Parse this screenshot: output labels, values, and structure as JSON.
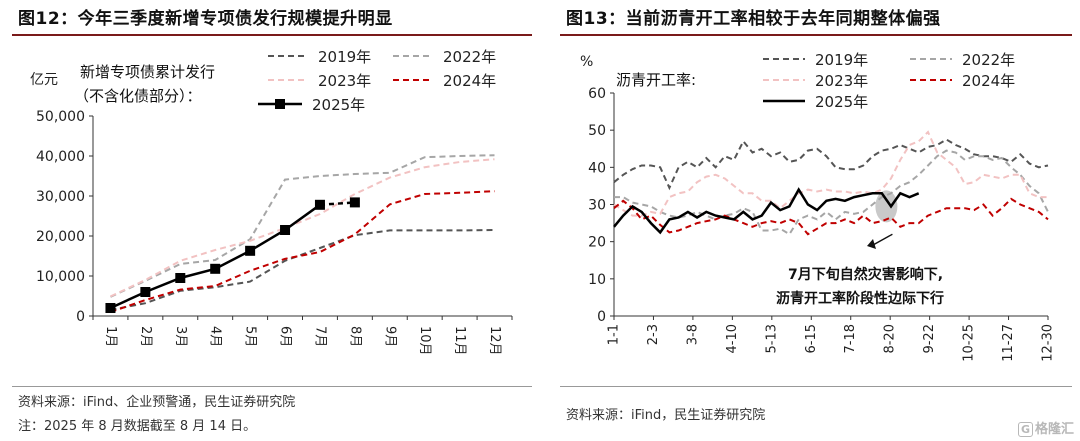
{
  "left": {
    "title": "图12：今年三季度新增专项债发行规模提升明显",
    "source": "资料来源：iFind、企业预警通，民生证券研究院",
    "note": "注：2025 年 8 月数据截至 8 月 14 日。"
  },
  "right": {
    "title": "图13：当前沥青开工率相较于去年同期整体偏强",
    "source": "资料来源：iFind，民生证券研究院"
  },
  "watermark": {
    "badge": "G",
    "text": "格隆汇"
  },
  "colors": {
    "y2019": "#555555",
    "y2022": "#a6a6a6",
    "y2023": "#f2c2c2",
    "y2024": "#c00000",
    "y2025": "#000000",
    "shade": "#bfbfbf",
    "rule": "#7a1a1a"
  },
  "chart_data": [
    {
      "type": "line",
      "ylabel": "亿元",
      "annotation": "新增专项债累计发行（不含化债部分）：",
      "ylim": [
        0,
        50000
      ],
      "yticks": [
        "0",
        "10,000",
        "20,000",
        "30,000",
        "40,000",
        "50,000"
      ],
      "categories": [
        "1月",
        "2月",
        "3月",
        "4月",
        "5月",
        "6月",
        "7月",
        "8月",
        "9月",
        "10月",
        "11月",
        "12月"
      ],
      "series": [
        {
          "name": "2019年",
          "values": [
            1500,
            3200,
            6300,
            7200,
            8600,
            13800,
            17000,
            20200,
            21400,
            21400,
            21400,
            21500
          ]
        },
        {
          "name": "2022年",
          "values": [
            4800,
            8800,
            13000,
            14000,
            19200,
            34100,
            35000,
            35500,
            35800,
            39700,
            40000,
            40200
          ]
        },
        {
          "name": "2023年",
          "values": [
            4900,
            9000,
            13800,
            16500,
            18800,
            22000,
            25500,
            30500,
            34600,
            37200,
            38500,
            39200
          ]
        },
        {
          "name": "2024年",
          "values": [
            1000,
            4000,
            6600,
            7500,
            11300,
            14300,
            16000,
            20400,
            27900,
            30500,
            30800,
            31200
          ]
        },
        {
          "name": "2025年",
          "values": [
            2000,
            6000,
            9500,
            11800,
            16300,
            21500,
            27800,
            28400,
            null,
            null,
            null,
            null
          ]
        }
      ]
    },
    {
      "type": "line",
      "ylabel": "%",
      "annotation": "沥青开工率:",
      "ylim": [
        0,
        60
      ],
      "yticks": [
        "0",
        "10",
        "20",
        "30",
        "40",
        "50",
        "60"
      ],
      "xticks": [
        "1-1",
        "2-3",
        "3-8",
        "4-10",
        "5-13",
        "6-15",
        "7-18",
        "8-20",
        "9-22",
        "10-25",
        "11-27",
        "12-30"
      ],
      "callout": [
        "7月下旬自然灾害影响下,",
        "沥青开工率阶段性边际下行"
      ],
      "series": [
        {
          "name": "2019年",
          "values": [
            36,
            38,
            39.5,
            40.5,
            40.5,
            40,
            34.5,
            40,
            41.5,
            40,
            42.5,
            40,
            43,
            42,
            47,
            44,
            45,
            43,
            44,
            41.5,
            42,
            44.5,
            45,
            43,
            40,
            39.5,
            39.5,
            40.5,
            43,
            44.5,
            45,
            46,
            45,
            44,
            45.5,
            46,
            47.5,
            46,
            45,
            43.5,
            43,
            43,
            42.5,
            41.5,
            43.5,
            41,
            40,
            40.5
          ]
        },
        {
          "name": "2022年",
          "values": [
            32,
            32,
            30.5,
            30,
            29.5,
            28,
            27,
            26.5,
            27,
            28,
            27,
            26,
            27,
            27.5,
            29,
            28,
            23,
            23,
            23.5,
            22,
            26,
            27,
            26,
            28,
            26,
            28,
            27.5,
            28,
            30,
            32,
            33,
            35,
            36,
            38,
            40.5,
            43,
            44.5,
            44,
            42,
            43,
            43,
            42,
            42.5,
            40,
            38,
            35,
            33,
            28
          ]
        },
        {
          "name": "2023年",
          "values": [
            30,
            28.5,
            27,
            27,
            28,
            27.5,
            32,
            33,
            33.5,
            36,
            37.5,
            38,
            37,
            35,
            33,
            33,
            31,
            31,
            29,
            31,
            33,
            34,
            33.5,
            34,
            33.5,
            33.5,
            33,
            33.5,
            33,
            34,
            37,
            42,
            46,
            47,
            49.5,
            44,
            42,
            40,
            35.5,
            36,
            38,
            37.5,
            37,
            38,
            38,
            33,
            32,
            32
          ]
        },
        {
          "name": "2024年",
          "values": [
            29,
            31,
            29,
            26,
            27,
            24.5,
            22.5,
            23,
            24,
            25,
            25.5,
            26,
            27,
            26,
            25,
            24,
            25,
            25.5,
            25,
            26,
            25,
            22,
            23.5,
            25,
            25,
            26,
            25,
            27,
            25,
            25.5,
            26.5,
            24,
            25,
            25,
            27,
            28,
            29,
            29,
            29,
            28.5,
            30,
            27,
            29,
            31.5,
            30,
            29,
            28,
            26
          ]
        },
        {
          "name": "2025年",
          "values": [
            24,
            27,
            29.5,
            28,
            25,
            22.5,
            26,
            26.5,
            28,
            26.5,
            28,
            27,
            26.5,
            26,
            28,
            26,
            27,
            30.5,
            28.5,
            29.5,
            34,
            30,
            28.5,
            31,
            31.5,
            31,
            32,
            32.5,
            33,
            33,
            29.5,
            33,
            32,
            33,
            null,
            null,
            null,
            null,
            null,
            null,
            null,
            null,
            null,
            null,
            null,
            null,
            null,
            null
          ]
        }
      ]
    }
  ]
}
